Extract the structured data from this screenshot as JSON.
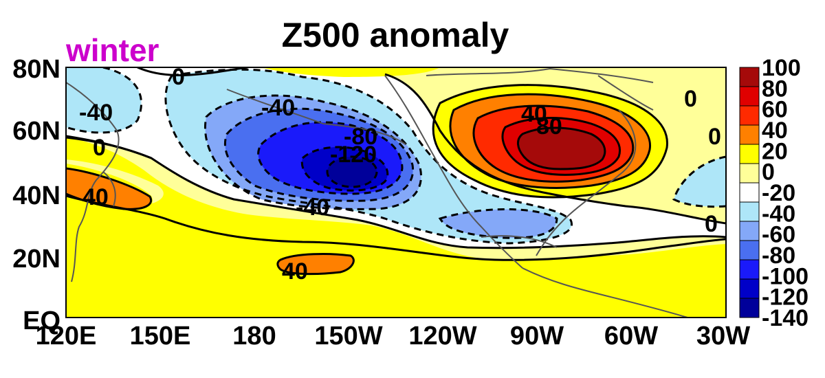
{
  "title": "Z500 anomaly",
  "season": "winter",
  "season_color": "#cc00cc",
  "lat_labels": [
    "80N",
    "60N",
    "40N",
    "20N",
    "EQ"
  ],
  "lon_labels": [
    "120E",
    "150E",
    "180",
    "150W",
    "120W",
    "90W",
    "60W",
    "30W"
  ],
  "contour_labels": [
    "0",
    "-40",
    "-40",
    "0",
    "40",
    "-80",
    "-120",
    "-40",
    "40",
    "40",
    "80",
    "0",
    "0",
    "0"
  ],
  "colorbar": {
    "labels": [
      "100",
      "80",
      "60",
      "40",
      "20",
      "0",
      "-20",
      "-40",
      "-60",
      "-80",
      "-100",
      "-120",
      "-140"
    ],
    "colors": [
      "#a50a0a",
      "#e00000",
      "#ff2a00",
      "#ff8000",
      "#ffff00",
      "#ffff99",
      "#ffffff",
      "#aee6f8",
      "#84a8f8",
      "#4a6ff0",
      "#1a1afa",
      "#0000c8",
      "#00009a"
    ]
  },
  "chart_data": {
    "type": "heatmap",
    "title": "Z500 anomaly",
    "region": {
      "lat_range": [
        "EQ",
        "80N"
      ],
      "lon_range": [
        "120E",
        "30W"
      ]
    },
    "contour_interval": 20,
    "dashed_contours": "negative values",
    "colorbar_range": [
      -140,
      100
    ],
    "features": [
      {
        "label": "-120",
        "sign": "negative"
      },
      {
        "label": "80",
        "sign": "positive"
      },
      {
        "label": "40",
        "sign": "positive"
      },
      {
        "label": "40",
        "sign": "positive"
      }
    ],
    "land_outlines": true,
    "colors": {
      "positive": "#ff2a00",
      "negative": "#1a1afa"
    }
  }
}
